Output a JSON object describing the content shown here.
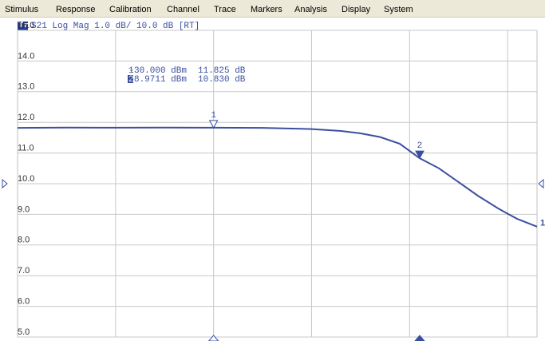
{
  "menu": [
    "Stimulus",
    "Response",
    "Calibration",
    "Channel",
    "Trace",
    "Markers",
    "Analysis",
    "Display",
    "System"
  ],
  "trace_header": {
    "tag": "Tr1",
    "text": "S21 Log Mag 1.0 dB/ 10.0 dB [RT]"
  },
  "chart_data": {
    "type": "line",
    "x": [
      -50,
      -45,
      -40,
      -35,
      -30,
      -25,
      -20,
      -17,
      -15,
      -13,
      -11,
      -8.9711,
      -7,
      -5,
      -3,
      -1,
      0,
      1,
      3
    ],
    "series": [
      {
        "name": "S21",
        "color": "#3b4fa0",
        "values": [
          11.82,
          11.83,
          11.825,
          11.83,
          11.825,
          11.82,
          11.78,
          11.72,
          11.64,
          11.52,
          11.3,
          10.83,
          10.5,
          10.05,
          9.6,
          9.2,
          9.02,
          8.85,
          8.6
        ]
      }
    ],
    "xlim": [
      -50,
      3
    ],
    "xticks": [
      -40,
      -30,
      -20,
      -10,
      0
    ],
    "ylim": [
      5,
      15
    ],
    "yticks": [
      {
        "value": 5,
        "label": "5.0"
      },
      {
        "value": 6,
        "label": "6.0"
      },
      {
        "value": 7,
        "label": "7.0"
      },
      {
        "value": 8,
        "label": "8.0"
      },
      {
        "value": 9,
        "label": "9.0"
      },
      {
        "value": 10,
        "label": "10.0"
      },
      {
        "value": 11,
        "label": "11.0"
      },
      {
        "value": 12,
        "label": "12.0"
      },
      {
        "value": 13,
        "label": "13.0"
      },
      {
        "value": 14,
        "label": "14.0"
      },
      {
        "value": 15,
        "label": "15.0"
      }
    ],
    "grid": true,
    "markers": [
      {
        "label": "1",
        "x": -30,
        "value": 11.825,
        "x_label": "-30.000 dBm",
        "value_label": "11.825 dB",
        "active": false
      },
      {
        "label": "2",
        "x": -8.9711,
        "value": 10.83,
        "x_label": "-8.9711 dBm",
        "value_label": "10.830 dB",
        "active": true
      }
    ],
    "trace_end_label": "1"
  }
}
